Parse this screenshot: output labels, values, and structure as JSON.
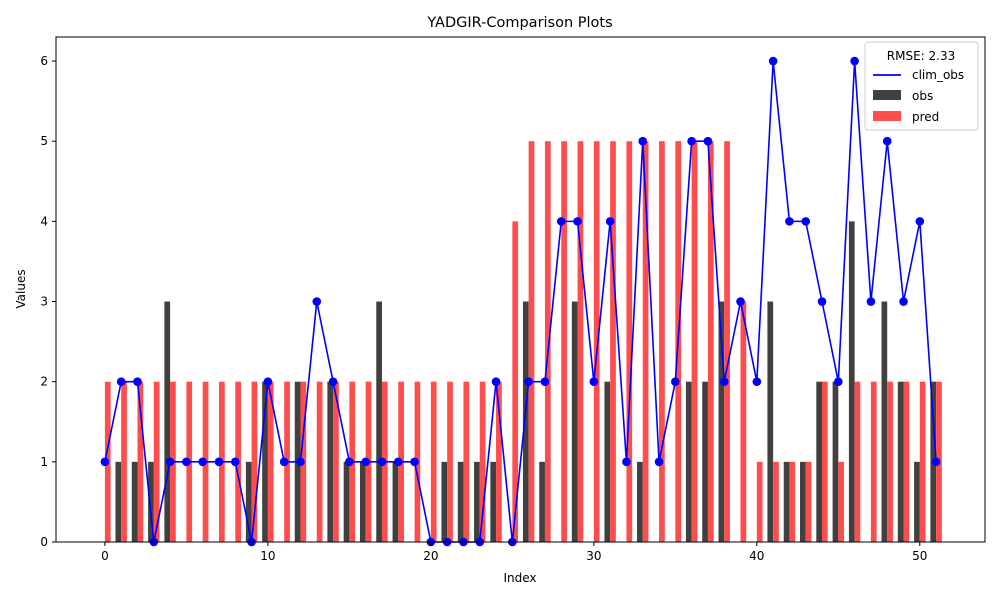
{
  "chart_data": {
    "type": "bar",
    "title": "YADGIR-Comparison Plots",
    "xlabel": "Index",
    "ylabel": "Values",
    "xlim": [
      -3,
      54
    ],
    "ylim": [
      0,
      6.3
    ],
    "xticks": [
      0,
      10,
      20,
      30,
      40,
      50
    ],
    "yticks": [
      0,
      1,
      2,
      3,
      4,
      5,
      6
    ],
    "legend": {
      "title": "RMSE: 2.33",
      "placement": "top-right"
    },
    "x": [
      0,
      1,
      2,
      3,
      4,
      5,
      6,
      7,
      8,
      9,
      10,
      11,
      12,
      13,
      14,
      15,
      16,
      17,
      18,
      19,
      20,
      21,
      22,
      23,
      24,
      25,
      26,
      27,
      28,
      29,
      30,
      31,
      32,
      33,
      34,
      35,
      36,
      37,
      38,
      39,
      40,
      41,
      42,
      43,
      44,
      45,
      46,
      47,
      48,
      49,
      50,
      51
    ],
    "series": [
      {
        "name": "clim_obs",
        "kind": "line",
        "color": "#0000ff",
        "values": [
          1,
          2,
          2,
          0,
          1,
          1,
          1,
          1,
          1,
          0,
          2,
          1,
          1,
          3,
          2,
          1,
          1,
          1,
          1,
          1,
          0,
          0,
          0,
          0,
          2,
          0,
          2,
          2,
          4,
          4,
          2,
          4,
          1,
          5,
          1,
          2,
          5,
          5,
          2,
          3,
          2,
          6,
          4,
          4,
          3,
          2,
          6,
          3,
          5,
          3,
          4,
          1
        ]
      },
      {
        "name": "obs",
        "kind": "bar",
        "color": "#404040",
        "values": [
          0,
          1,
          1,
          1,
          3,
          0,
          0,
          0,
          0,
          1,
          2,
          0,
          2,
          0,
          2,
          1,
          1,
          3,
          1,
          0,
          0,
          1,
          1,
          1,
          1,
          0,
          3,
          1,
          0,
          3,
          0,
          2,
          0,
          1,
          0,
          0,
          2,
          2,
          3,
          0,
          0,
          3,
          1,
          1,
          2,
          2,
          4,
          0,
          3,
          2,
          1,
          2
        ]
      },
      {
        "name": "pred",
        "kind": "bar",
        "color": "#ff4d4d",
        "values": [
          2,
          2,
          2,
          2,
          2,
          2,
          2,
          2,
          2,
          2,
          2,
          2,
          2,
          2,
          2,
          2,
          2,
          2,
          2,
          2,
          2,
          2,
          2,
          2,
          2,
          4,
          5,
          5,
          5,
          5,
          5,
          5,
          5,
          5,
          5,
          5,
          5,
          5,
          5,
          3,
          1,
          1,
          1,
          1,
          2,
          1,
          2,
          2,
          2,
          2,
          2,
          2
        ]
      }
    ]
  }
}
